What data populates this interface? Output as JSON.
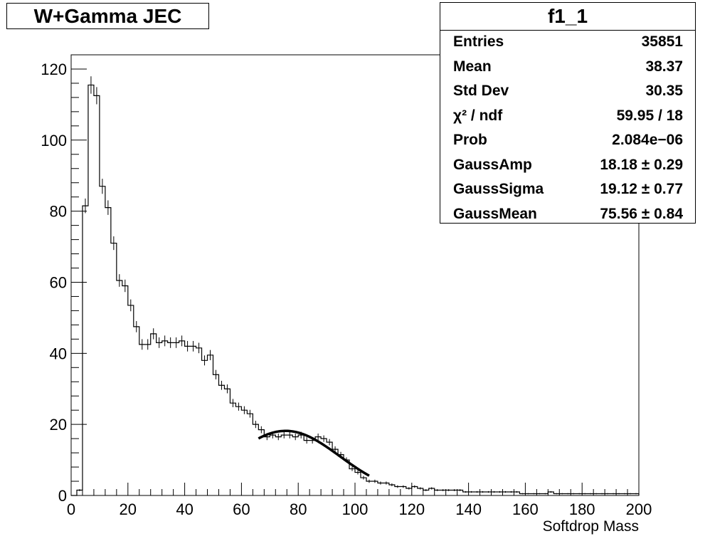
{
  "chart_data": {
    "type": "histogram",
    "title": "W+Gamma JEC",
    "xlabel": "Softdrop Mass",
    "ylabel": "",
    "xlim": [
      0,
      200
    ],
    "ylim": [
      0,
      124
    ],
    "x_ticks": [
      0,
      20,
      40,
      60,
      80,
      100,
      120,
      140,
      160,
      180,
      200
    ],
    "y_ticks": [
      0,
      20,
      40,
      60,
      80,
      100,
      120
    ],
    "bin_width": 2,
    "bin_low_edges": [
      0,
      2,
      4,
      6,
      8,
      10,
      12,
      14,
      16,
      18,
      20,
      22,
      24,
      26,
      28,
      30,
      32,
      34,
      36,
      38,
      40,
      42,
      44,
      46,
      48,
      50,
      52,
      54,
      56,
      58,
      60,
      62,
      64,
      66,
      68,
      70,
      72,
      74,
      76,
      78,
      80,
      82,
      84,
      86,
      88,
      90,
      92,
      94,
      96,
      98,
      100,
      102,
      104,
      106,
      108,
      110,
      112,
      114,
      116,
      118,
      120,
      122,
      124,
      126,
      128,
      130,
      132,
      134,
      136,
      138,
      140,
      142,
      144,
      146,
      148,
      150,
      152,
      154,
      156,
      158,
      160,
      162,
      164,
      166,
      168,
      170,
      172,
      174,
      176,
      178,
      180,
      182,
      184,
      186,
      188,
      190,
      192,
      194,
      196,
      198
    ],
    "values": [
      0,
      1.5,
      81.5,
      115.5,
      112.5,
      87,
      81,
      71,
      60.5,
      59,
      53.5,
      47.5,
      42.5,
      42.5,
      45.5,
      43,
      43.5,
      43,
      43,
      43.5,
      42,
      42,
      41.5,
      38,
      39.5,
      34,
      31,
      30,
      26,
      25,
      24,
      23,
      20,
      18.5,
      16.5,
      17,
      16.5,
      17,
      17,
      16.5,
      17,
      15.5,
      15.5,
      16.5,
      16,
      15,
      13,
      11.5,
      10,
      7.5,
      6.5,
      5,
      4,
      4,
      3.5,
      3.5,
      3,
      2.5,
      2.5,
      2,
      2.5,
      2,
      1.5,
      2,
      1.5,
      1.5,
      1.5,
      1.5,
      1.5,
      1,
      1,
      1,
      1,
      1,
      1,
      1,
      1,
      1,
      1,
      0.5,
      0.5,
      0.5,
      0.5,
      0.5,
      1,
      0.5,
      0.5,
      0.5,
      0.5,
      0.5,
      0.5,
      0.5,
      0.5,
      0.5,
      0.5,
      0.5,
      0.5,
      0.5,
      0.5,
      0.5
    ],
    "fit": {
      "function": "gauss",
      "x_range": [
        66,
        105
      ],
      "amplitude": 18.18,
      "mean": 75.56,
      "sigma": 19.12
    },
    "stats": {
      "name": "f1_1",
      "rows": [
        {
          "name": "Entries",
          "value": "35851"
        },
        {
          "name": "Mean",
          "value": "38.37"
        },
        {
          "name": "Std Dev",
          "value": "30.35"
        },
        {
          "name": "χ² / ndf",
          "value": "59.95 / 18"
        },
        {
          "name": "Prob",
          "value": "2.084e−06"
        },
        {
          "name": "GaussAmp",
          "value": "18.18 ± 0.29"
        },
        {
          "name": "GaussSigma",
          "value": "19.12 ± 0.77"
        },
        {
          "name": "GaussMean",
          "value": "75.56 ± 0.84"
        }
      ]
    }
  }
}
